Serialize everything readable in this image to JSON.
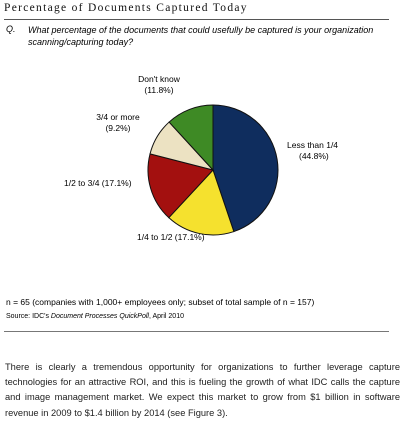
{
  "figure": {
    "title": "Percentage of Documents Captured Today",
    "question_label": "Q.",
    "question_text": "What percentage of the documents that could usefully be captured is your organization scanning/capturing today?"
  },
  "chart_data": {
    "type": "pie",
    "title": "",
    "start": "12 o'clock, clockwise",
    "slices": [
      {
        "label": "Less than 1/4",
        "pct_text": "(44.8%)",
        "value": 44.8,
        "color": "#0f2d5e"
      },
      {
        "label": "1/4 to 1/2",
        "pct_text": "(17.1%)",
        "value": 17.1,
        "color": "#f5e12e"
      },
      {
        "label": "1/2 to 3/4",
        "pct_text": "(17.1%)",
        "value": 17.1,
        "color": "#a3100f"
      },
      {
        "label": "3/4 or more",
        "pct_text": "(9.2%)",
        "value": 9.2,
        "color": "#ece2c2"
      },
      {
        "label": "Don't know",
        "pct_text": "(11.8%)",
        "value": 11.8,
        "color": "#3e8a25"
      }
    ]
  },
  "footnotes": {
    "sample_note": "n = 65 (companies with 1,000+ employees only; subset of total sample of n = 157)",
    "source_prefix": "Source: IDC's ",
    "source_title": "Document Processes QuickPoll",
    "source_suffix": ", April 2010"
  },
  "body_text": "There is clearly a tremendous opportunity for organizations to further leverage capture technologies for an attractive ROI, and this is fueling the growth of what IDC calls the capture and image management market. We expect this market to grow from $1 billion in software revenue in 2009 to $1.4 billion by 2014 (see Figure 3)."
}
